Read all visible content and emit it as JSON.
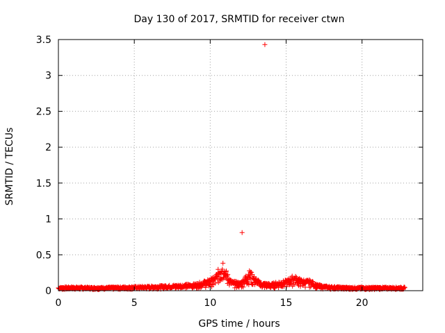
{
  "chart_data": {
    "type": "scatter",
    "title": "Day 130 of 2017, SRMTID for receiver ctwn",
    "xlabel": "GPS time / hours",
    "ylabel": "SRMTID / TECUs",
    "xlim": [
      0,
      24
    ],
    "ylim": [
      0,
      3.5
    ],
    "xticks": [
      "0",
      "5",
      "10",
      "15",
      "20"
    ],
    "yticks": [
      "0",
      "0.5",
      "1",
      "1.5",
      "2",
      "2.5",
      "3",
      "3.5"
    ],
    "grid": true,
    "marker": "+",
    "color": "#ff0000",
    "outliers": [
      {
        "x": 12.1,
        "y": 0.81
      },
      {
        "x": 13.6,
        "y": 3.43
      }
    ],
    "envelope": [
      {
        "x": 0.0,
        "y": 0.05
      },
      {
        "x": 1.0,
        "y": 0.055
      },
      {
        "x": 2.0,
        "y": 0.05
      },
      {
        "x": 3.0,
        "y": 0.05
      },
      {
        "x": 4.0,
        "y": 0.055
      },
      {
        "x": 5.0,
        "y": 0.06
      },
      {
        "x": 6.0,
        "y": 0.065
      },
      {
        "x": 7.0,
        "y": 0.075
      },
      {
        "x": 8.0,
        "y": 0.085
      },
      {
        "x": 9.0,
        "y": 0.1
      },
      {
        "x": 9.8,
        "y": 0.15
      },
      {
        "x": 10.3,
        "y": 0.2
      },
      {
        "x": 10.7,
        "y": 0.38
      },
      {
        "x": 10.85,
        "y": 0.45
      },
      {
        "x": 11.0,
        "y": 0.3
      },
      {
        "x": 11.4,
        "y": 0.14
      },
      {
        "x": 12.0,
        "y": 0.12
      },
      {
        "x": 12.4,
        "y": 0.24
      },
      {
        "x": 12.6,
        "y": 0.3
      },
      {
        "x": 12.9,
        "y": 0.2
      },
      {
        "x": 13.3,
        "y": 0.12
      },
      {
        "x": 14.0,
        "y": 0.1
      },
      {
        "x": 14.5,
        "y": 0.13
      },
      {
        "x": 15.0,
        "y": 0.15
      },
      {
        "x": 15.5,
        "y": 0.22
      },
      {
        "x": 16.0,
        "y": 0.16
      },
      {
        "x": 16.6,
        "y": 0.15
      },
      {
        "x": 17.0,
        "y": 0.09
      },
      {
        "x": 17.5,
        "y": 0.07
      },
      {
        "x": 18.0,
        "y": 0.06
      },
      {
        "x": 19.0,
        "y": 0.05
      },
      {
        "x": 20.0,
        "y": 0.05
      },
      {
        "x": 21.0,
        "y": 0.05
      },
      {
        "x": 22.0,
        "y": 0.05
      },
      {
        "x": 22.8,
        "y": 0.05
      }
    ],
    "sample_step": 0.04
  }
}
